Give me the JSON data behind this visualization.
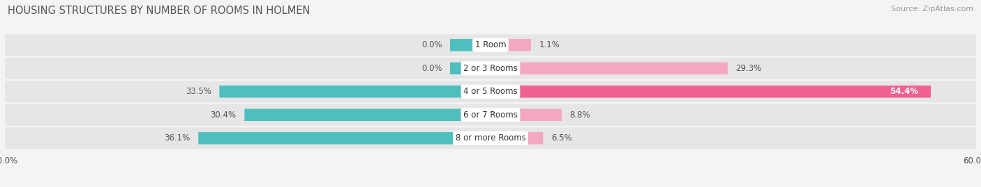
{
  "title": "HOUSING STRUCTURES BY NUMBER OF ROOMS IN HOLMEN",
  "source": "Source: ZipAtlas.com",
  "categories": [
    "1 Room",
    "2 or 3 Rooms",
    "4 or 5 Rooms",
    "6 or 7 Rooms",
    "8 or more Rooms"
  ],
  "owner_values": [
    0.0,
    0.0,
    33.5,
    30.4,
    36.1
  ],
  "renter_values": [
    1.1,
    29.3,
    54.4,
    8.8,
    6.5
  ],
  "owner_color": "#4dbfbf",
  "renter_color_normal": "#f4a7c0",
  "renter_color_large": "#f06090",
  "renter_large_threshold": 50.0,
  "axis_limit": 60.0,
  "min_bar_width": 5.0,
  "bar_height": 0.52,
  "background_color": "#f4f4f4",
  "row_bg_color": "#e6e6e6",
  "label_fontsize": 8.5,
  "title_fontsize": 10.5,
  "source_fontsize": 8.0,
  "cat_label_fontsize": 8.5,
  "value_color": "#555555",
  "white_value_color": "#ffffff",
  "title_color": "#555555"
}
